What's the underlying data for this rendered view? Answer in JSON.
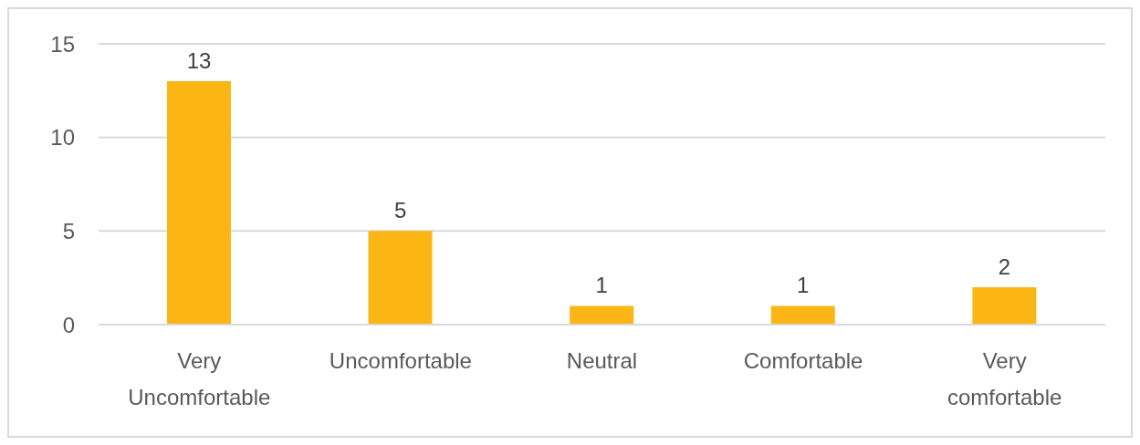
{
  "chart_data": {
    "type": "bar",
    "categories": [
      "Very Uncomfortable",
      "Uncomfortable",
      "Neutral",
      "Comfortable",
      "Very comfortable"
    ],
    "values": [
      13,
      5,
      1,
      1,
      2
    ],
    "color": "#fbb616",
    "ylim": [
      0,
      15
    ],
    "yticks": [
      0,
      5,
      10,
      15
    ],
    "grid": "y",
    "data_labels": true
  }
}
